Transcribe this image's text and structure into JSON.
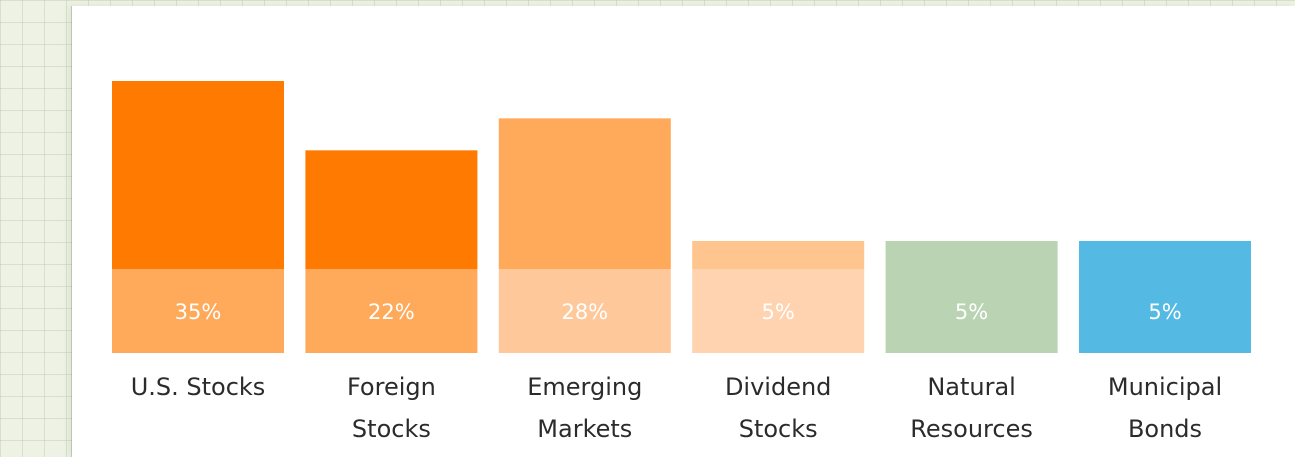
{
  "chart_data": {
    "type": "bar",
    "title": "",
    "xlabel": "",
    "ylabel": "",
    "categories": [
      {
        "line1": "U.S. Stocks",
        "line2": ""
      },
      {
        "line1": "Foreign",
        "line2": "Stocks"
      },
      {
        "line1": "Emerging",
        "line2": "Markets"
      },
      {
        "line1": "Dividend",
        "line2": "Stocks"
      },
      {
        "line1": "Natural",
        "line2": "Resources"
      },
      {
        "line1": "Municipal",
        "line2": "Bonds"
      }
    ],
    "values": [
      35,
      22,
      28,
      5,
      5,
      5
    ],
    "value_labels": [
      "35%",
      "22%",
      "28%",
      "5%",
      "5%",
      "5%"
    ],
    "ylim": [
      0,
      35
    ],
    "grid": false,
    "colors": {
      "top": [
        "#ff7a00",
        "#ff7a00",
        "#ffa95a",
        "#ffc58e",
        "#b9d3b3",
        "#54b9e3"
      ],
      "bottom": [
        "#ffa95a",
        "#ffa95a",
        "#ffc89b",
        "#ffd2b0",
        "#b9d3b3",
        "#54b9e3"
      ]
    }
  }
}
